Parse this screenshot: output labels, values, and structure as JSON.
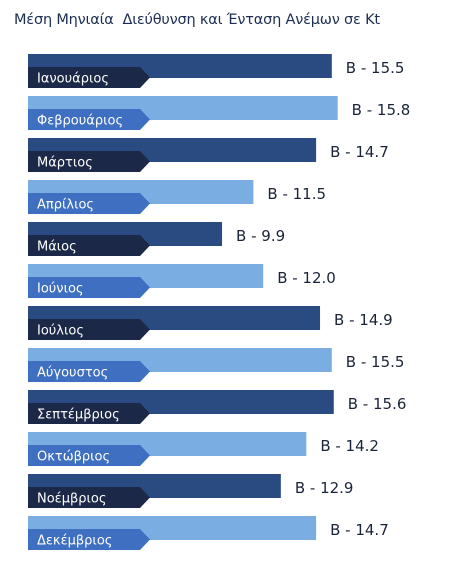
{
  "chart_data": {
    "type": "bar",
    "orientation": "horizontal",
    "title": "Μέση Μηνιαία  Διεύθυνση και Ένταση Ανέμων σε Kt",
    "categories": [
      "Ιανουάριος",
      "Φεβρουάριος",
      "Μάρτιος",
      "Απρίλιος",
      "Μάιος",
      "Ιούνιος",
      "Ιούλιος",
      "Αύγουστος",
      "Σεπτέμβριος",
      "Οκτώβριος",
      "Νοέμβριος",
      "Δεκέμβριος"
    ],
    "values": [
      15.5,
      15.8,
      14.7,
      11.5,
      9.9,
      12.0,
      14.9,
      15.5,
      15.6,
      14.2,
      12.9,
      14.7
    ],
    "labels": [
      "Β - 15.5",
      "Β - 15.8",
      "Β - 14.7",
      "Β - 11.5",
      "Β - 9.9",
      "Β - 12.0",
      "Β - 14.9",
      "Β - 15.5",
      "Β - 15.6",
      "Β - 14.2",
      "Β - 12.9",
      "Β - 14.7"
    ],
    "direction": "Β",
    "colors": {
      "dark_bar": "#2a4a82",
      "light_bar": "#7aaee3",
      "dark_tab": "#1c2848",
      "light_tab": "#3e6fc0",
      "title": "#1c2f52"
    }
  }
}
